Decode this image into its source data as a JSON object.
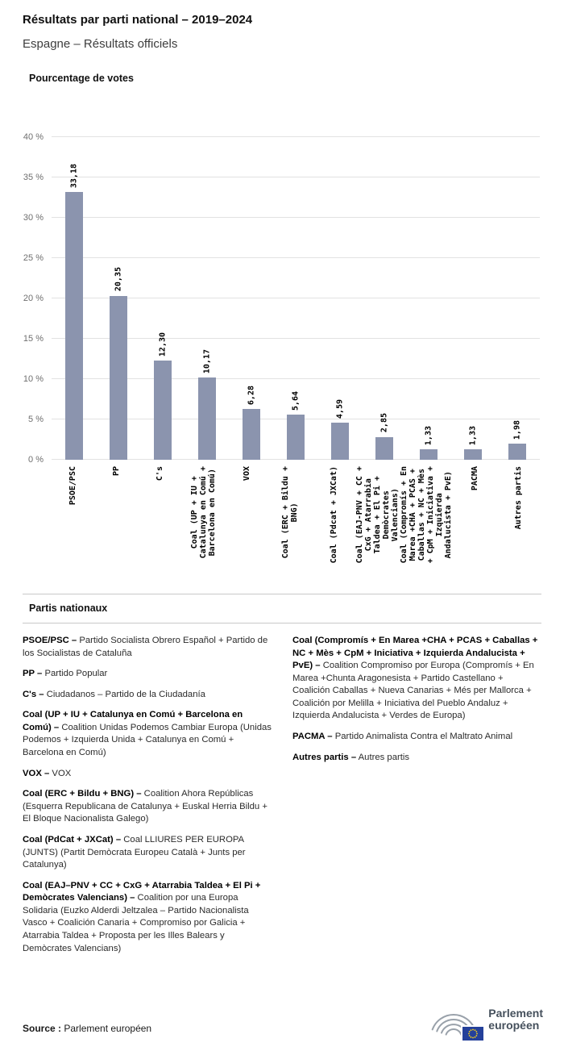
{
  "page": {
    "title": "Résultats par parti national – 2019–2024",
    "subtitle": "Espagne – Résultats officiels"
  },
  "chart_data": {
    "type": "bar",
    "title": "Pourcentage de votes",
    "categories": [
      "PSOE/PSC",
      "PP",
      "C's",
      "Coal (UP + IU +\nCatalunya en Comú +\nBarcelona en Comú)",
      "VOX",
      "Coal (ERC + Bildu +\nBNG)",
      "Coal (Pdcat + JXCat)",
      "Coal (EAJ-PNV + CC +\nCxG + Atarrabia\nTaldea + El Pi +\nDemòcrates\nValencians)",
      "Coal (Compromís + En\nMarea +CHA + PCAS +\nCaballas + NC + Mès\n+ CpM + Iniciativa +\nIzquierda\nAndalucista + PvE)",
      "PACMA",
      "Autres partis"
    ],
    "values": [
      33.18,
      20.35,
      12.3,
      10.17,
      6.28,
      5.64,
      4.59,
      2.85,
      1.33,
      1.33,
      1.98
    ],
    "value_labels": [
      "33,18",
      "20,35",
      "12,30",
      "10,17",
      "6,28",
      "5,64",
      "4,59",
      "2,85",
      "1,33",
      "1,33",
      "1,98"
    ],
    "xlabel": "",
    "ylabel": "",
    "ylim": [
      0,
      40
    ],
    "yticks": [
      0,
      5,
      10,
      15,
      20,
      25,
      30,
      35,
      40
    ],
    "ytick_suffix": " %",
    "grid": true,
    "legend_position": "none",
    "bar_color": "#8b94ae"
  },
  "legend": {
    "heading": "Partis nationaux",
    "columns": [
      [
        {
          "term": "PSOE/PSC –",
          "desc": "Partido Socialista Obrero Español + Partido de los Socialistas de Cataluña"
        },
        {
          "term": "PP –",
          "desc": "Partido Popular"
        },
        {
          "term": "C's –",
          "desc": "Ciudadanos – Partido de la Ciudadanía"
        },
        {
          "term": "Coal (UP + IU + Catalunya en Comú + Barcelona en Comú) –",
          "desc": "Coalition Unidas Podemos Cambiar Europa (Unidas Podemos + Izquierda Unida + Catalunya en Comú + Barcelona en Comú)"
        },
        {
          "term": "VOX –",
          "desc": "VOX"
        },
        {
          "term": "Coal (ERC + Bildu + BNG) –",
          "desc": "Coalition Ahora Repúblicas (Esquerra Republicana de Catalunya + Euskal Herria Bildu + El Bloque Nacionalista Galego)"
        },
        {
          "term": "Coal (PdCat + JXCat) –",
          "desc": "Coal LLIURES PER EUROPA (JUNTS) (Partit Demòcrata Europeu Català + Junts per Catalunya)"
        },
        {
          "term": "Coal (EAJ–PNV + CC + CxG + Atarrabia Taldea + El Pi + Demòcrates Valencians) –",
          "desc": "Coalition por una Europa Solidaria (Euzko Alderdi Jeltzalea – Partido Nacionalista Vasco + Coalición Canaria + Compromiso por Galicia + Atarrabia Taldea + Proposta per les Illes Balears y Demòcrates Valencians)"
        }
      ],
      [
        {
          "term": "Coal (Compromís + En Marea +CHA + PCAS + Caballas + NC + Mès + CpM + Iniciativa + Izquierda Andalucista + PvE) –",
          "desc": "Coalition Compromiso por Europa (Compromís + En Marea +Chunta Aragonesista + Partido Castellano + Coalición Caballas + Nueva Canarias + Més per Mallorca + Coalición por Melilla + Iniciativa del Pueblo Andaluz + Izquierda Andalucista + Verdes de Europa)"
        },
        {
          "term": "PACMA –",
          "desc": "Partido Animalista Contra el Maltrato Animal"
        },
        {
          "term": "Autres partis –",
          "desc": "Autres partis"
        }
      ]
    ]
  },
  "source": {
    "label": "Source :",
    "value": "Parlement européen"
  },
  "logo": {
    "line1": "Parlement",
    "line2": "européen"
  }
}
